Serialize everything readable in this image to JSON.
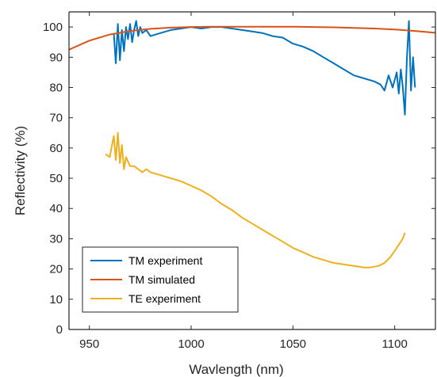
{
  "chart_data": {
    "type": "line",
    "title": "",
    "xlabel": "Wavlength (nm)",
    "ylabel": "Reflectivity (%)",
    "xlim": [
      940,
      1120
    ],
    "ylim": [
      0,
      105
    ],
    "xticks": [
      950,
      1000,
      1050,
      1100
    ],
    "yticks": [
      0,
      10,
      20,
      30,
      40,
      50,
      60,
      70,
      80,
      90,
      100
    ],
    "grid": false,
    "legend_position": "bottom-left",
    "series": [
      {
        "name": "TM experiment",
        "color": "#0072BD",
        "x": [
          962,
          963,
          964,
          965,
          966,
          967,
          968,
          969,
          970,
          971,
          972,
          973,
          974,
          975,
          976,
          978,
          980,
          985,
          990,
          995,
          1000,
          1005,
          1010,
          1015,
          1020,
          1025,
          1030,
          1035,
          1040,
          1045,
          1050,
          1055,
          1060,
          1065,
          1070,
          1075,
          1080,
          1085,
          1090,
          1093,
          1095,
          1097,
          1099,
          1101,
          1102,
          1103,
          1104,
          1105,
          1106,
          1107,
          1108,
          1109,
          1110
        ],
        "y": [
          98,
          88,
          101,
          89,
          99,
          92,
          100,
          96,
          101,
          95,
          99,
          102,
          97,
          100,
          98,
          99,
          97,
          98,
          99,
          99.5,
          100,
          99.5,
          100,
          100,
          99.5,
          99,
          98.5,
          98,
          97,
          96.5,
          94.5,
          93.5,
          92,
          90,
          88,
          86,
          84,
          83,
          82,
          81,
          79,
          84,
          80,
          85,
          78,
          86,
          80,
          71,
          90,
          102,
          79,
          90,
          80
        ]
      },
      {
        "name": "TM simulated",
        "color": "#D95319",
        "x": [
          940,
          950,
          960,
          970,
          980,
          990,
          1000,
          1010,
          1020,
          1030,
          1040,
          1050,
          1060,
          1070,
          1080,
          1090,
          1100,
          1110,
          1120
        ],
        "y": [
          92.5,
          95.5,
          97.5,
          98.7,
          99.4,
          99.8,
          100,
          100.1,
          100.1,
          100.1,
          100.1,
          100.1,
          100,
          99.9,
          99.7,
          99.5,
          99.2,
          98.7,
          98.1
        ]
      },
      {
        "name": "TE experiment",
        "color": "#EDB120",
        "x": [
          958,
          960,
          962,
          963,
          964,
          965,
          966,
          967,
          968,
          970,
          972,
          974,
          976,
          978,
          980,
          985,
          990,
          995,
          1000,
          1005,
          1010,
          1015,
          1020,
          1025,
          1030,
          1035,
          1040,
          1045,
          1050,
          1055,
          1060,
          1065,
          1070,
          1075,
          1080,
          1085,
          1088,
          1092,
          1095,
          1098,
          1100,
          1102,
          1104,
          1105
        ],
        "y": [
          58,
          57,
          64,
          56,
          65,
          55,
          61,
          53,
          57,
          54,
          54,
          53,
          52,
          53,
          52,
          51,
          50,
          49,
          47.5,
          46,
          44,
          41.5,
          39.5,
          37,
          35,
          33,
          31,
          29,
          27,
          25.5,
          24,
          23,
          22,
          21.5,
          21,
          20.5,
          20.5,
          21,
          22,
          24,
          26,
          28,
          30,
          32
        ]
      }
    ]
  }
}
